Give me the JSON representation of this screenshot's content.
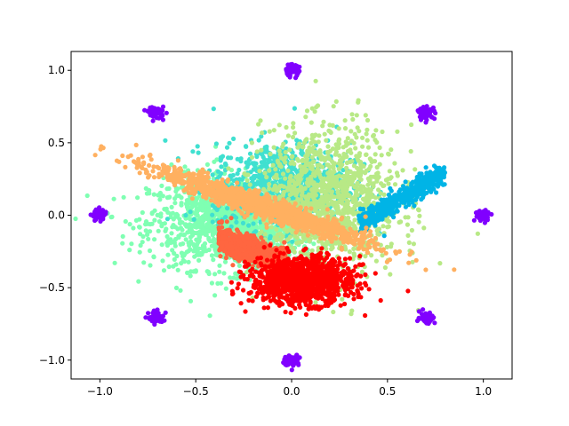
{
  "chart_data": {
    "type": "scatter",
    "title": "",
    "xlabel": "",
    "ylabel": "",
    "xlim": [
      -1.15,
      1.15
    ],
    "ylim": [
      -1.13,
      1.13
    ],
    "grid": false,
    "legend": "none",
    "x_ticks": [
      -1.0,
      -0.5,
      0.0,
      0.5,
      1.0
    ],
    "x_tick_labels": [
      "−1.0",
      "−0.5",
      "0.0",
      "0.5",
      "1.0"
    ],
    "y_ticks": [
      -1.0,
      -0.5,
      0.0,
      0.5,
      1.0
    ],
    "y_tick_labels": [
      "−1.0",
      "−0.5",
      "0.0",
      "0.5",
      "1.0"
    ],
    "seed_clusters": {
      "color": "#8000ff",
      "centers": [
        [
          0.0,
          1.0
        ],
        [
          0.707,
          0.707
        ],
        [
          1.0,
          0.0
        ],
        [
          0.707,
          -0.707
        ],
        [
          0.0,
          -1.0
        ],
        [
          -0.707,
          -0.707
        ],
        [
          -1.0,
          0.0
        ],
        [
          -0.707,
          0.707
        ]
      ],
      "spread": 0.02,
      "points_per_cluster": 60
    },
    "series": [
      {
        "color": "#7fffb2",
        "description_center": [
          -0.3,
          -0.05
        ],
        "spread": [
          0.22,
          0.16
        ],
        "count": 1400
      },
      {
        "color": "#40e0d0",
        "description_center": [
          -0.05,
          0.2
        ],
        "spread": [
          0.18,
          0.15
        ],
        "count": 900
      },
      {
        "color": "#b8e986",
        "description_center": [
          0.2,
          0.1
        ],
        "spread": [
          0.18,
          0.25
        ],
        "count": 1200
      },
      {
        "color": "#00b4e6",
        "description_center": [
          0.55,
          0.12
        ],
        "spread": [
          0.12,
          0.06
        ],
        "count": 500
      },
      {
        "color": "#ffb060",
        "description_center": [
          -0.1,
          0.05
        ],
        "spread": [
          0.2,
          0.08
        ],
        "count": 1300
      },
      {
        "color": "#ff6640",
        "description_center": [
          -0.05,
          -0.3
        ],
        "spread": [
          0.12,
          0.06
        ],
        "count": 700
      },
      {
        "color": "#ff0000",
        "description_center": [
          0.05,
          -0.45
        ],
        "spread": [
          0.13,
          0.08
        ],
        "count": 1200
      }
    ]
  }
}
